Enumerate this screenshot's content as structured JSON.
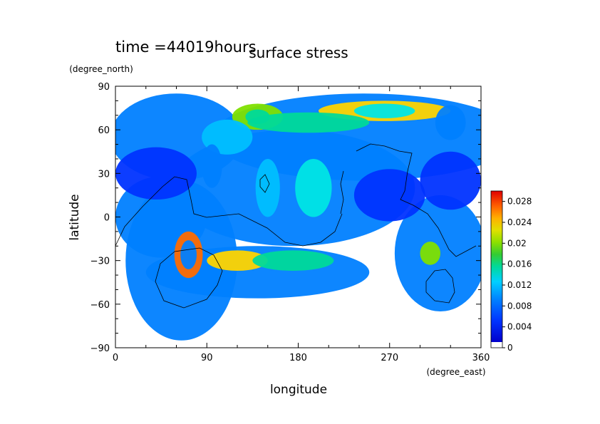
{
  "header": {
    "time_label": "time =44019hours",
    "title": "surface stress"
  },
  "chart_data": {
    "type": "heatmap",
    "title": "surface stress",
    "xlabel": "longitude",
    "ylabel": "latitude",
    "xunits": "(degree_east)",
    "yunits": "(degree_north)",
    "xlim": [
      0,
      360
    ],
    "ylim": [
      -90,
      90
    ],
    "xticks": [
      0,
      90,
      180,
      270,
      360
    ],
    "yticks": [
      -90,
      -60,
      -30,
      0,
      30,
      60,
      90
    ],
    "x_tick_labels": [
      "0",
      "90",
      "180",
      "270",
      "360"
    ],
    "y_tick_labels": [
      "−90",
      "−60",
      "−30",
      "0",
      "30",
      "60",
      "90"
    ],
    "colorbar": {
      "range": [
        0,
        0.03
      ],
      "labels": [
        "0",
        "0.004",
        "0.008",
        "0.012",
        "0.016",
        "0.02",
        "0.024",
        "0.028"
      ],
      "colors": [
        "#ffffff",
        "#0000cc",
        "#0033ff",
        "#0080ff",
        "#00bfff",
        "#00e5e5",
        "#00d99a",
        "#33cc33",
        "#7fe000",
        "#cce600",
        "#ffd400",
        "#ffa000",
        "#ff6a00",
        "#ff3000",
        "#e00000"
      ]
    },
    "blobs": [
      {
        "lon": 245,
        "lat": 55,
        "rx": 150,
        "ry": 30,
        "v": 0.006
      },
      {
        "lon": 175,
        "lat": 20,
        "rx": 120,
        "ry": 40,
        "v": 0.006
      },
      {
        "lon": 60,
        "lat": 55,
        "rx": 65,
        "ry": 30,
        "v": 0.006
      },
      {
        "lon": 140,
        "lat": -38,
        "rx": 110,
        "ry": 18,
        "v": 0.006
      },
      {
        "lon": 65,
        "lat": -30,
        "rx": 55,
        "ry": 55,
        "v": 0.006
      },
      {
        "lon": 45,
        "lat": 0,
        "rx": 45,
        "ry": 28,
        "v": 0.005
      },
      {
        "lon": 40,
        "lat": 30,
        "rx": 40,
        "ry": 18,
        "v": 0.004
      },
      {
        "lon": 320,
        "lat": -25,
        "rx": 45,
        "ry": 40,
        "v": 0.006
      },
      {
        "lon": 330,
        "lat": 25,
        "rx": 30,
        "ry": 20,
        "v": 0.004
      },
      {
        "lon": 270,
        "lat": 15,
        "rx": 35,
        "ry": 18,
        "v": 0.004
      },
      {
        "lon": 265,
        "lat": 73,
        "rx": 65,
        "ry": 7,
        "v": 0.02
      },
      {
        "lon": 265,
        "lat": 73,
        "rx": 30,
        "ry": 5,
        "v": 0.01
      },
      {
        "lon": 140,
        "lat": 69,
        "rx": 25,
        "ry": 9,
        "v": 0.016
      },
      {
        "lon": 140,
        "lat": 69,
        "rx": 12,
        "ry": 5,
        "v": 0.012
      },
      {
        "lon": 190,
        "lat": 65,
        "rx": 60,
        "ry": 7,
        "v": 0.012
      },
      {
        "lon": 110,
        "lat": 55,
        "rx": 25,
        "ry": 12,
        "v": 0.008
      },
      {
        "lon": 195,
        "lat": 20,
        "rx": 18,
        "ry": 20,
        "v": 0.01
      },
      {
        "lon": 150,
        "lat": 20,
        "rx": 12,
        "ry": 20,
        "v": 0.008
      },
      {
        "lon": 72,
        "lat": -26,
        "rx": 14,
        "ry": 16,
        "v": 0.024
      },
      {
        "lon": 72,
        "lat": -26,
        "rx": 8,
        "ry": 10,
        "v": 0.006
      },
      {
        "lon": 120,
        "lat": -30,
        "rx": 30,
        "ry": 7,
        "v": 0.02
      },
      {
        "lon": 175,
        "lat": -30,
        "rx": 40,
        "ry": 7,
        "v": 0.012
      },
      {
        "lon": 310,
        "lat": -25,
        "rx": 10,
        "ry": 8,
        "v": 0.016
      },
      {
        "lon": 95,
        "lat": 35,
        "rx": 10,
        "ry": 15,
        "v": 0.006
      },
      {
        "lon": 330,
        "lat": 65,
        "rx": 15,
        "ry": 12,
        "v": 0.006
      }
    ],
    "coastline_note": "thin black continent outlines overlaid"
  }
}
